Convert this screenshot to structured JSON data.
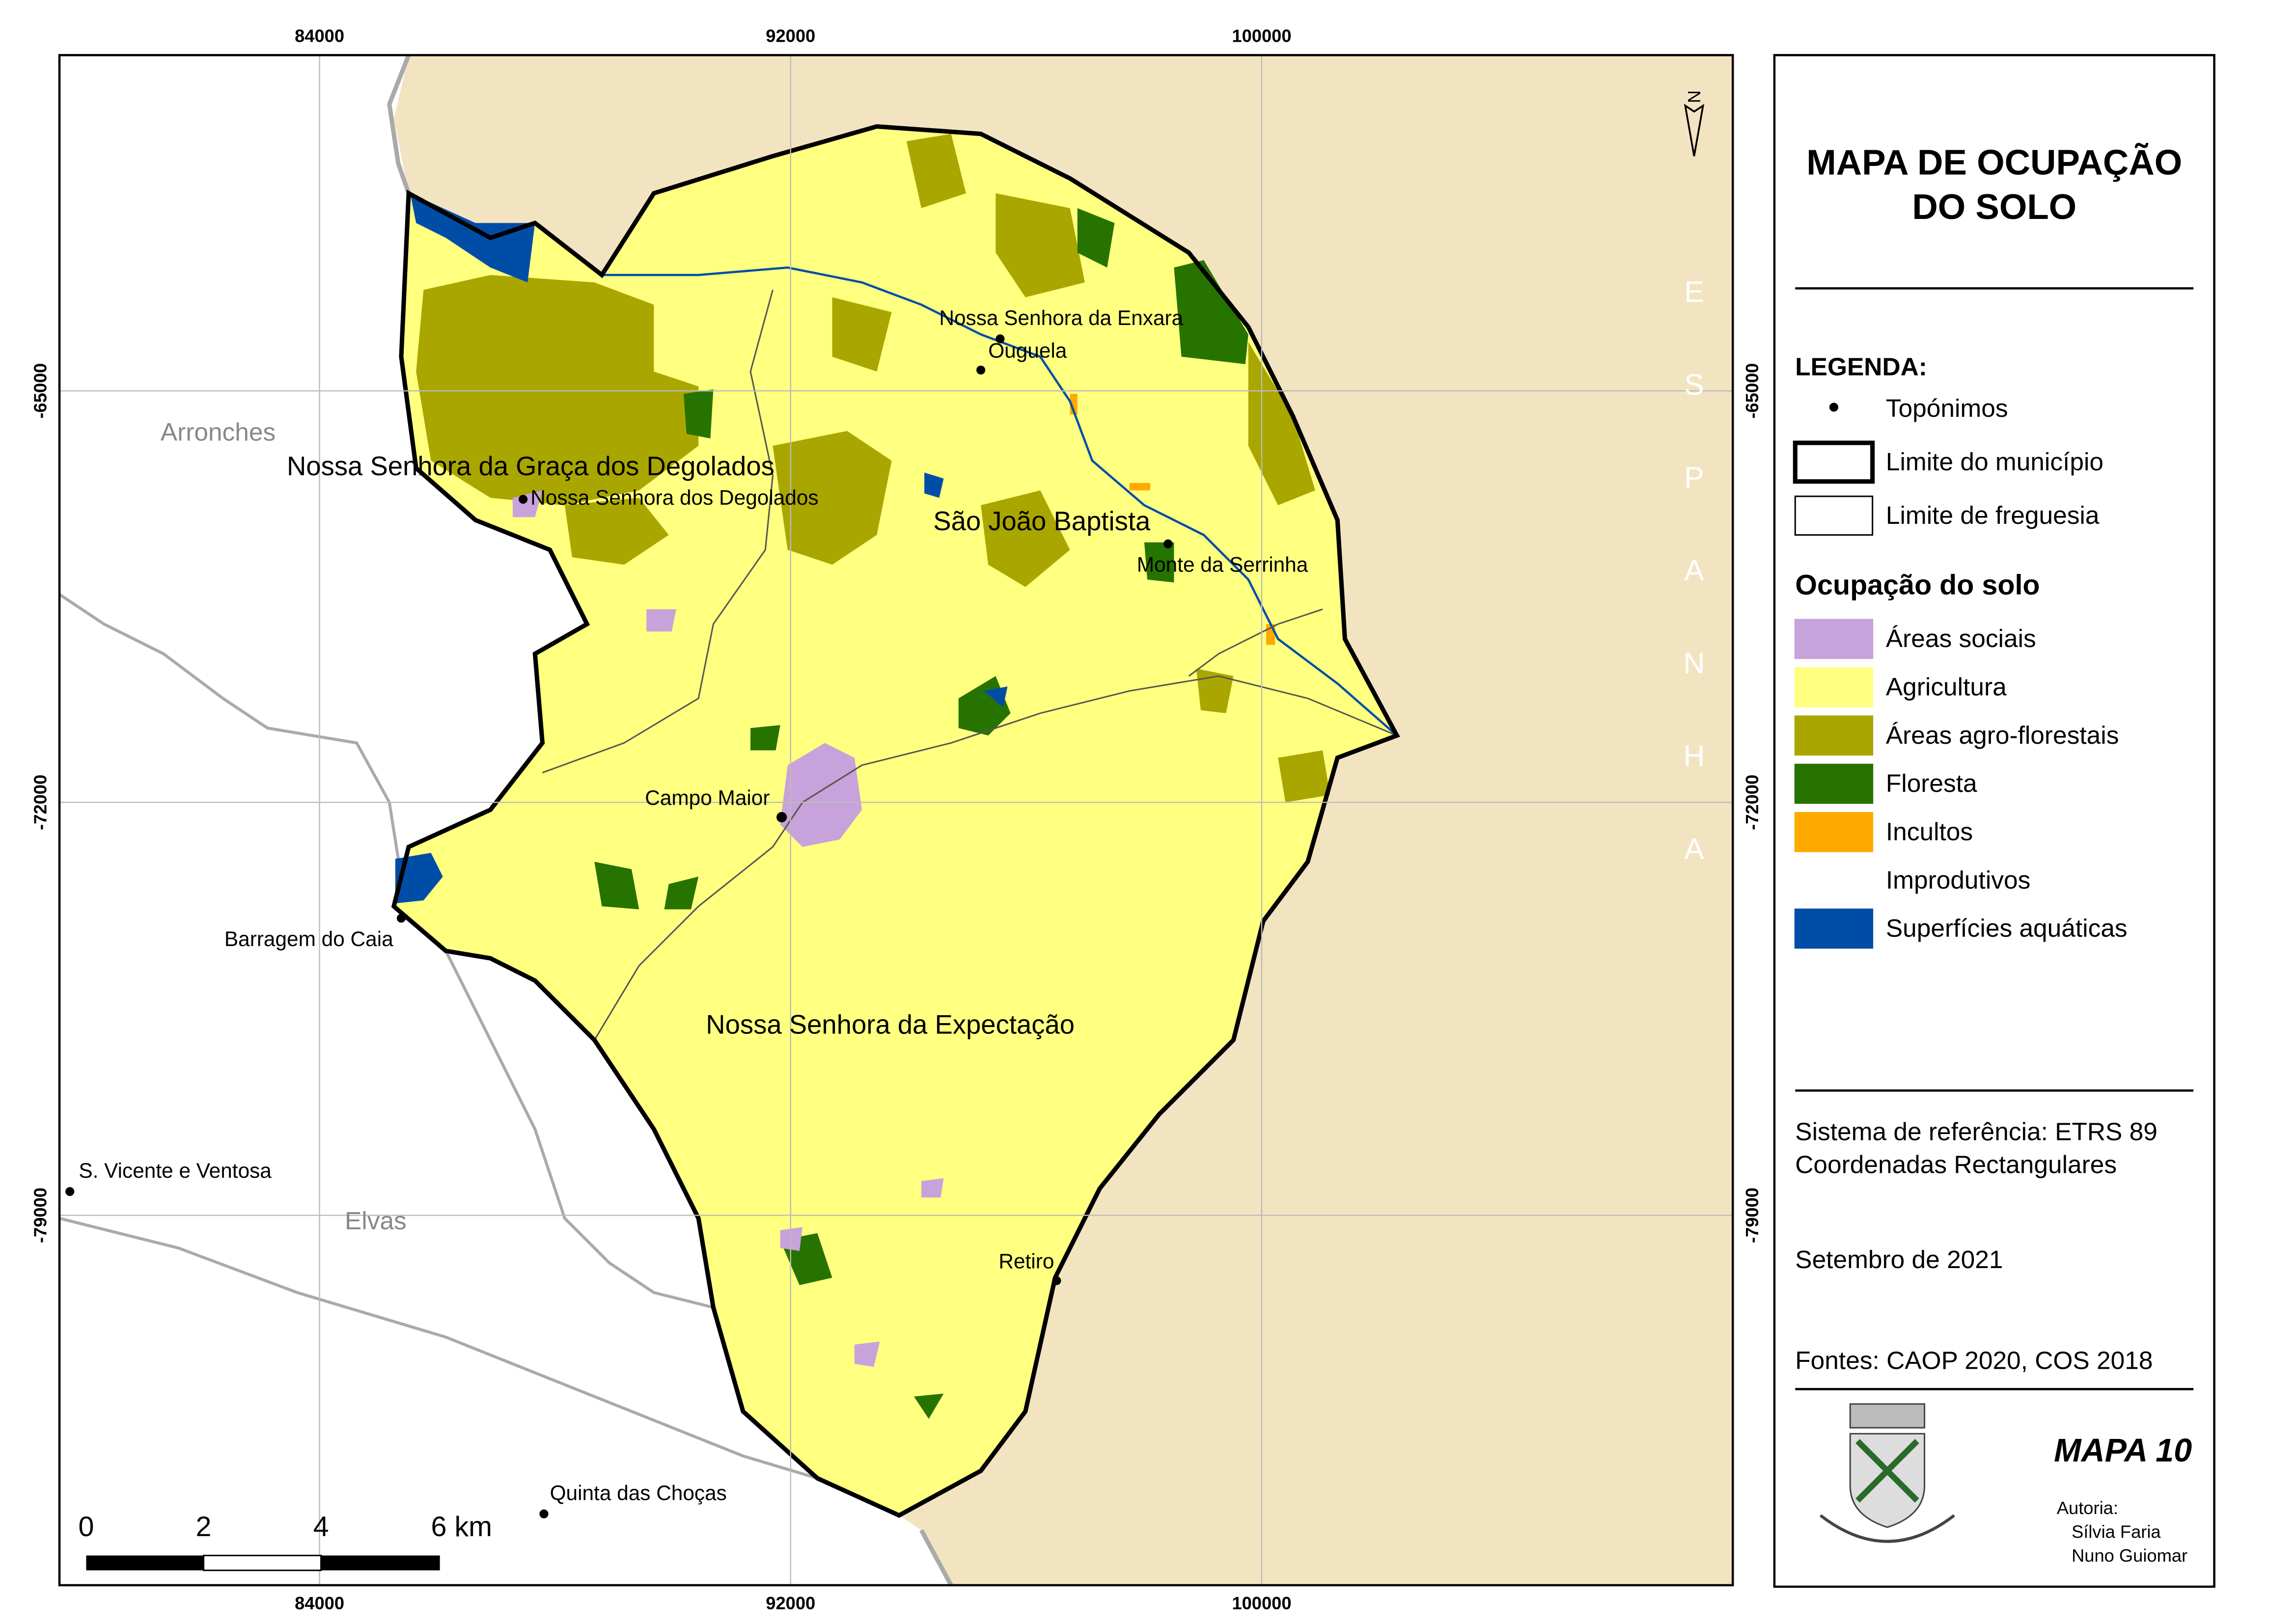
{
  "map": {
    "title_line1": "MAPA DE OCUPAÇÃO",
    "title_line2": "DO SOLO",
    "legend_heading": "LEGENDA:",
    "symbols": [
      "Topónimos",
      "Limite do município",
      "Limite de freguesia"
    ],
    "land_use_heading": "Ocupação do solo",
    "land_use": [
      {
        "label": "Áreas sociais",
        "color": "#c8a2da"
      },
      {
        "label": "Agricultura",
        "color": "#ffff80"
      },
      {
        "label": "Áreas agro-florestais",
        "color": "#aaa600"
      },
      {
        "label": "Floresta",
        "color": "#267300"
      },
      {
        "label": "Incultos",
        "color": "#ffaa00"
      },
      {
        "label": "Improdutivos",
        "color": "#ffffff"
      },
      {
        "label": "Superfícies aquáticas",
        "color": "#004da8"
      }
    ],
    "reference_system": "Sistema de referência: ETRS 89",
    "coordinates": "Coordenadas Rectangulares",
    "date": "Setembro de 2021",
    "sources": "Fontes: CAOP 2020, COS 2018",
    "map_number": "MAPA 10",
    "authorship": "Autoria:",
    "authors": [
      "Sílvia Faria",
      "Nuno Guiomar"
    ],
    "country": "ESPANHA",
    "grid_x": [
      "84000",
      "92000",
      "100000"
    ],
    "grid_y": [
      "-65000",
      "-72000",
      "-79000"
    ],
    "scale_labels": [
      "0",
      "2",
      "4",
      "6 km"
    ],
    "parishes": [
      "Nossa Senhora da Graça dos Degolados",
      "São João Baptista",
      "Nossa Senhora da Expectação"
    ],
    "municipalities": [
      "Arronches",
      "Elvas"
    ],
    "places": [
      "Nossa Senhora da Enxara",
      "Ouguela",
      "Nossa Senhora dos Degolados",
      "Monte da Serrinha",
      "Campo Maior",
      "Barragem do Caia",
      "S. Vicente e Ventosa",
      "Retiro",
      "Quinta das Choças"
    ]
  }
}
